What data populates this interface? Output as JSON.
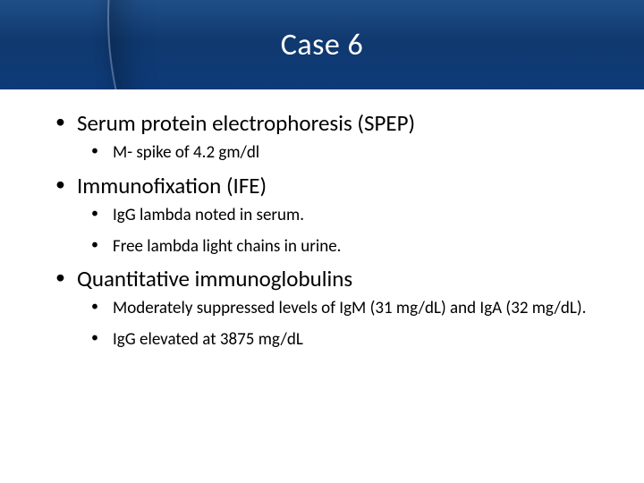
{
  "title": "Case 6",
  "header": {
    "bg_gradient_top": "#1f4e87",
    "bg_gradient_mid": "#10396f",
    "bg_gradient_bottom": "#0d3a78",
    "text_color": "#ffffff",
    "title_fontsize": 34
  },
  "body": {
    "text_color": "#000000",
    "background_color": "#ffffff",
    "level1_fontsize": 25,
    "level2_fontsize": 19
  },
  "bullets": [
    {
      "text": "Serum protein electrophoresis (SPEP)",
      "children": [
        {
          "text": "M- spike of 4.2 gm/dl"
        }
      ]
    },
    {
      "text": "Immunofixation (IFE)",
      "children": [
        {
          "text": "IgG lambda noted in serum."
        },
        {
          "text": "Free lambda light chains in urine."
        }
      ]
    },
    {
      "text": "Quantitative immunoglobulins",
      "children": [
        {
          "text": "Moderately suppressed levels of IgM (31 mg/dL) and IgA (32 mg/dL)."
        },
        {
          "text": "IgG elevated at 3875 mg/dL"
        }
      ]
    }
  ]
}
